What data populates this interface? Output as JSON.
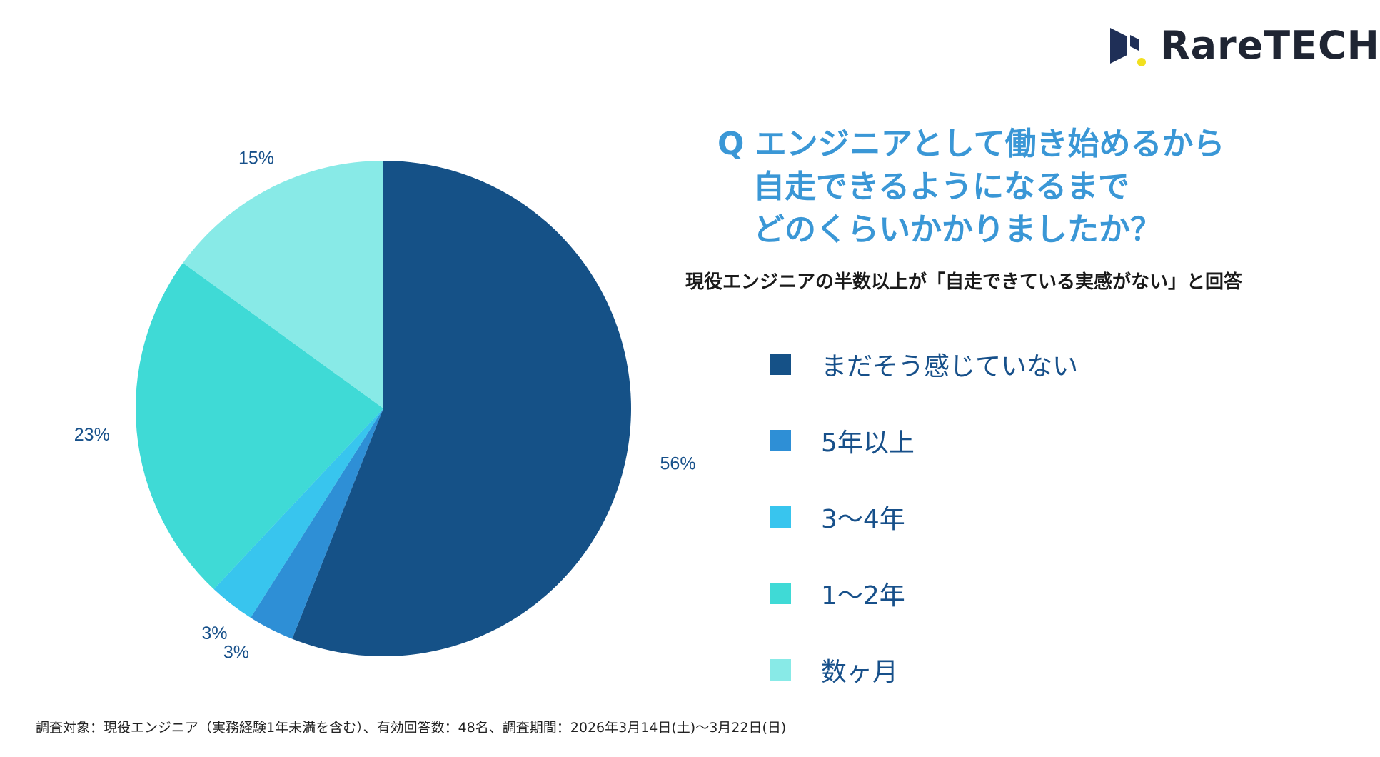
{
  "logo": {
    "text": "RareTECH",
    "mark_color_dark": "#1f2f57",
    "mark_color_accent": "#f2e01f"
  },
  "question": {
    "line1": "Q エンジニアとして働き始めるから",
    "line2": "自走できるようになるまで",
    "line3": "どのくらいかかりましたか？"
  },
  "subtitle": "現役エンジニアの半数以上が「自走できている実感がない」と回答",
  "footer": "調査対象：現役エンジニア（実務経験1年未満を含む）、有効回答数：48名、調査期間：2026年3月14日(土)〜3月22日(日)",
  "chart_data": {
    "type": "pie",
    "title": "Q エンジニアとして働き始めるから自走できるようになるまでどのくらいかかりましたか？",
    "start": "12 o'clock, clockwise",
    "slices": [
      {
        "label": "まだそう感じていない",
        "value": 56,
        "display": "56%",
        "color": "#155187"
      },
      {
        "label": "5年以上",
        "value": 3,
        "display": "3%",
        "color": "#2e8fd6"
      },
      {
        "label": "3〜4年",
        "value": 3,
        "display": "3%",
        "color": "#38c5ee"
      },
      {
        "label": "1〜2年",
        "value": 23,
        "display": "23%",
        "color": "#3fdad6"
      },
      {
        "label": "数ヶ月",
        "value": 15,
        "display": "15%",
        "color": "#88eae7"
      }
    ],
    "legend_position": "right"
  }
}
